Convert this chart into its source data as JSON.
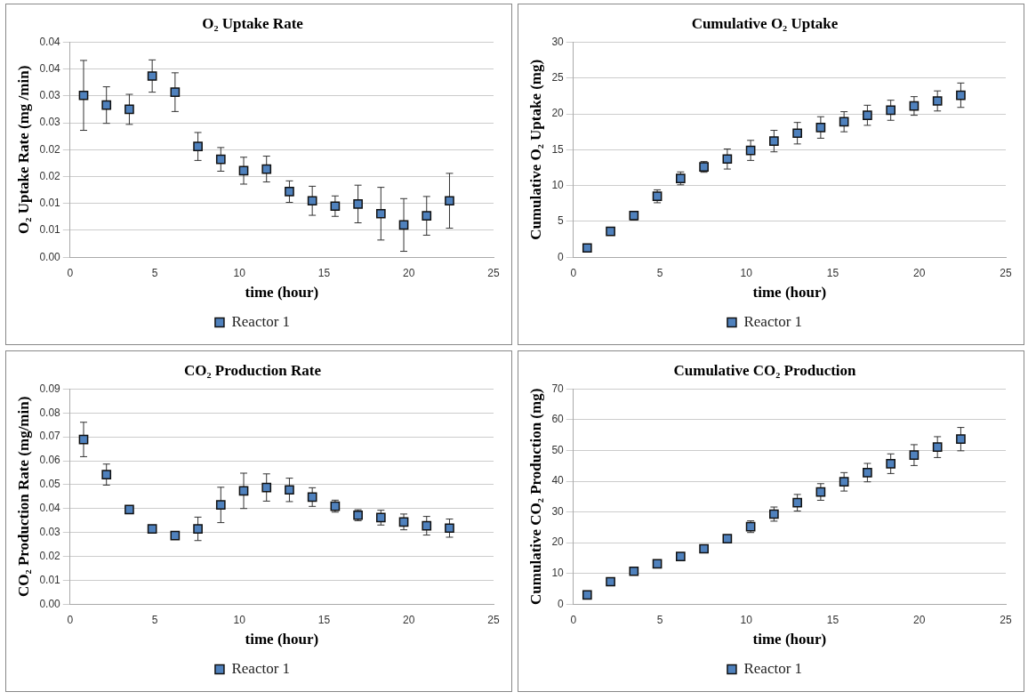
{
  "chart_data": [
    {
      "type": "scatter",
      "title": "O₂ Uptake Rate",
      "xlabel": "time (hour)",
      "ylabel": "O₂ Uptake Rate (mg /min)",
      "x": [
        0.8,
        2.15,
        3.5,
        4.85,
        6.2,
        7.55,
        8.9,
        10.25,
        11.6,
        12.95,
        14.3,
        15.65,
        17.0,
        18.35,
        19.7,
        21.05,
        22.4
      ],
      "series": [
        {
          "name": "Reactor 1",
          "color": "#4f81bd",
          "values": [
            0.0301,
            0.0283,
            0.0275,
            0.0337,
            0.0307,
            0.0206,
            0.0182,
            0.0161,
            0.0164,
            0.0122,
            0.0105,
            0.0095,
            0.0099,
            0.0081,
            0.006,
            0.0077,
            0.0105
          ],
          "errors": [
            0.0065,
            0.0034,
            0.0028,
            0.003,
            0.0036,
            0.0026,
            0.0022,
            0.0025,
            0.0024,
            0.002,
            0.0027,
            0.0019,
            0.0035,
            0.0049,
            0.0049,
            0.0036,
            0.0051
          ]
        }
      ],
      "xlim": [
        0,
        25
      ],
      "xticks": [
        0,
        5,
        10,
        15,
        20,
        25
      ],
      "ylim": [
        0,
        0.04
      ],
      "yticks": [
        {
          "value": 0,
          "label": "0.00"
        },
        {
          "value": 0.005,
          "label": "0.01"
        },
        {
          "value": 0.01,
          "label": "0.01"
        },
        {
          "value": 0.015,
          "label": "0.02"
        },
        {
          "value": 0.02,
          "label": "0.02"
        },
        {
          "value": 0.025,
          "label": "0.03"
        },
        {
          "value": 0.03,
          "label": "0.03"
        },
        {
          "value": 0.035,
          "label": "0.04"
        },
        {
          "value": 0.04,
          "label": "0.04"
        }
      ],
      "grid": "y",
      "legend": "bottom",
      "marker": "square"
    },
    {
      "type": "scatter",
      "title": "Cumulative O₂ Uptake",
      "xlabel": "time (hour)",
      "ylabel": "Cumulative O₂ Uptake (mg)",
      "x": [
        0.8,
        2.15,
        3.5,
        4.85,
        6.2,
        7.55,
        8.9,
        10.25,
        11.6,
        12.95,
        14.3,
        15.65,
        17.0,
        18.35,
        19.7,
        21.05,
        22.4
      ],
      "series": [
        {
          "name": "Reactor 1",
          "color": "#4f81bd",
          "values": [
            1.3,
            3.6,
            5.8,
            8.5,
            11.0,
            12.6,
            13.7,
            14.9,
            16.2,
            17.3,
            18.1,
            18.9,
            19.8,
            20.5,
            21.1,
            21.8,
            22.6
          ],
          "errors": [
            null,
            null,
            0.6,
            0.9,
            0.9,
            0.75,
            1.4,
            1.4,
            1.5,
            1.5,
            1.5,
            1.4,
            1.4,
            1.4,
            1.3,
            1.4,
            1.7
          ]
        }
      ],
      "xlim": [
        0,
        25
      ],
      "xticks": [
        0,
        5,
        10,
        15,
        20,
        25
      ],
      "ylim": [
        0,
        30
      ],
      "yticks": [
        0,
        5,
        10,
        15,
        20,
        25,
        30
      ],
      "grid": "y",
      "legend": "bottom",
      "marker": "square"
    },
    {
      "type": "scatter",
      "title": "CO₂ Production Rate",
      "xlabel": "time (hour)",
      "ylabel": "CO₂ Production Rate (mg/min)",
      "x": [
        0.8,
        2.15,
        3.5,
        4.85,
        6.2,
        7.55,
        8.9,
        10.25,
        11.6,
        12.95,
        14.3,
        15.65,
        17.0,
        18.35,
        19.7,
        21.05,
        22.4
      ],
      "series": [
        {
          "name": "Reactor 1",
          "color": "#4f81bd",
          "values": [
            0.0689,
            0.0542,
            0.0396,
            0.0315,
            0.0287,
            0.0315,
            0.0415,
            0.0474,
            0.0488,
            0.0478,
            0.0448,
            0.041,
            0.0372,
            0.0362,
            0.0344,
            0.0328,
            0.0318
          ],
          "errors": [
            0.0072,
            0.0044,
            null,
            null,
            null,
            0.0049,
            0.0074,
            0.0074,
            0.0057,
            0.0049,
            0.0039,
            0.0025,
            0.0023,
            0.0031,
            0.0033,
            0.0039,
            0.0038
          ]
        }
      ],
      "xlim": [
        0,
        25
      ],
      "xticks": [
        0,
        5,
        10,
        15,
        20,
        25
      ],
      "ylim": [
        0,
        0.09
      ],
      "yticks": [
        {
          "value": 0,
          "label": "0.00"
        },
        {
          "value": 0.01,
          "label": "0.01"
        },
        {
          "value": 0.02,
          "label": "0.02"
        },
        {
          "value": 0.03,
          "label": "0.03"
        },
        {
          "value": 0.04,
          "label": "0.04"
        },
        {
          "value": 0.05,
          "label": "0.05"
        },
        {
          "value": 0.06,
          "label": "0.06"
        },
        {
          "value": 0.07,
          "label": "0.07"
        },
        {
          "value": 0.08,
          "label": "0.08"
        },
        {
          "value": 0.09,
          "label": "0.09"
        }
      ],
      "grid": "y",
      "legend": "bottom",
      "marker": "square"
    },
    {
      "type": "scatter",
      "title": "Cumulative CO₂ Production",
      "xlabel": "time (hour)",
      "ylabel": "Cumulative CO₂ Production (mg)",
      "x": [
        0.8,
        2.15,
        3.5,
        4.85,
        6.2,
        7.55,
        8.9,
        10.25,
        11.6,
        12.95,
        14.3,
        15.65,
        17.0,
        18.35,
        19.7,
        21.05,
        22.4
      ],
      "series": [
        {
          "name": "Reactor 1",
          "color": "#4f81bd",
          "values": [
            3.0,
            7.3,
            10.7,
            13.1,
            15.5,
            18.0,
            21.3,
            25.2,
            29.3,
            33.0,
            36.5,
            39.8,
            42.8,
            45.7,
            48.5,
            51.1,
            53.7
          ],
          "errors": [
            null,
            null,
            null,
            null,
            null,
            null,
            0.6,
            1.9,
            2.3,
            2.7,
            2.7,
            3.0,
            3.0,
            3.2,
            3.4,
            3.4,
            3.8
          ]
        }
      ],
      "xlim": [
        0,
        25
      ],
      "xticks": [
        0,
        5,
        10,
        15,
        20,
        25
      ],
      "ylim": [
        0,
        70
      ],
      "yticks": [
        0,
        10,
        20,
        30,
        40,
        50,
        60,
        70
      ],
      "grid": "y",
      "legend": "bottom",
      "marker": "square"
    }
  ]
}
